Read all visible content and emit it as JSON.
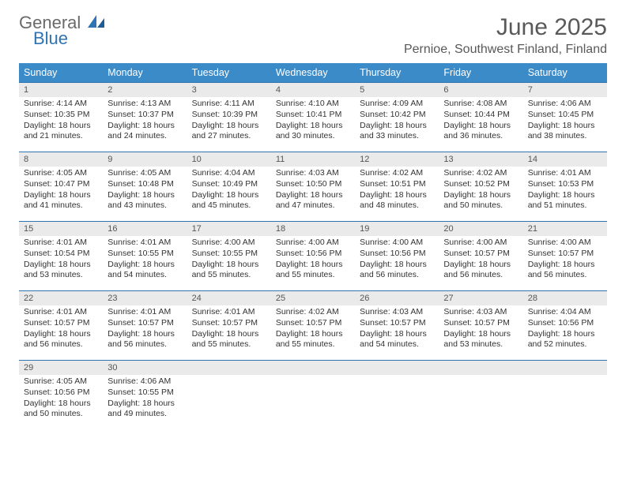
{
  "logo": {
    "word1": "General",
    "word2": "Blue"
  },
  "header": {
    "month_title": "June 2025",
    "location": "Pernioe, Southwest Finland, Finland"
  },
  "colors": {
    "header_bg": "#3b8bc9",
    "header_text": "#ffffff",
    "divider": "#2e74b5",
    "daynum_bg": "#eaeaea",
    "text": "#333333",
    "title_color": "#595959"
  },
  "weekdays": [
    "Sunday",
    "Monday",
    "Tuesday",
    "Wednesday",
    "Thursday",
    "Friday",
    "Saturday"
  ],
  "days": [
    {
      "n": "1",
      "sunrise": "Sunrise: 4:14 AM",
      "sunset": "Sunset: 10:35 PM",
      "daylight": "Daylight: 18 hours and 21 minutes."
    },
    {
      "n": "2",
      "sunrise": "Sunrise: 4:13 AM",
      "sunset": "Sunset: 10:37 PM",
      "daylight": "Daylight: 18 hours and 24 minutes."
    },
    {
      "n": "3",
      "sunrise": "Sunrise: 4:11 AM",
      "sunset": "Sunset: 10:39 PM",
      "daylight": "Daylight: 18 hours and 27 minutes."
    },
    {
      "n": "4",
      "sunrise": "Sunrise: 4:10 AM",
      "sunset": "Sunset: 10:41 PM",
      "daylight": "Daylight: 18 hours and 30 minutes."
    },
    {
      "n": "5",
      "sunrise": "Sunrise: 4:09 AM",
      "sunset": "Sunset: 10:42 PM",
      "daylight": "Daylight: 18 hours and 33 minutes."
    },
    {
      "n": "6",
      "sunrise": "Sunrise: 4:08 AM",
      "sunset": "Sunset: 10:44 PM",
      "daylight": "Daylight: 18 hours and 36 minutes."
    },
    {
      "n": "7",
      "sunrise": "Sunrise: 4:06 AM",
      "sunset": "Sunset: 10:45 PM",
      "daylight": "Daylight: 18 hours and 38 minutes."
    },
    {
      "n": "8",
      "sunrise": "Sunrise: 4:05 AM",
      "sunset": "Sunset: 10:47 PM",
      "daylight": "Daylight: 18 hours and 41 minutes."
    },
    {
      "n": "9",
      "sunrise": "Sunrise: 4:05 AM",
      "sunset": "Sunset: 10:48 PM",
      "daylight": "Daylight: 18 hours and 43 minutes."
    },
    {
      "n": "10",
      "sunrise": "Sunrise: 4:04 AM",
      "sunset": "Sunset: 10:49 PM",
      "daylight": "Daylight: 18 hours and 45 minutes."
    },
    {
      "n": "11",
      "sunrise": "Sunrise: 4:03 AM",
      "sunset": "Sunset: 10:50 PM",
      "daylight": "Daylight: 18 hours and 47 minutes."
    },
    {
      "n": "12",
      "sunrise": "Sunrise: 4:02 AM",
      "sunset": "Sunset: 10:51 PM",
      "daylight": "Daylight: 18 hours and 48 minutes."
    },
    {
      "n": "13",
      "sunrise": "Sunrise: 4:02 AM",
      "sunset": "Sunset: 10:52 PM",
      "daylight": "Daylight: 18 hours and 50 minutes."
    },
    {
      "n": "14",
      "sunrise": "Sunrise: 4:01 AM",
      "sunset": "Sunset: 10:53 PM",
      "daylight": "Daylight: 18 hours and 51 minutes."
    },
    {
      "n": "15",
      "sunrise": "Sunrise: 4:01 AM",
      "sunset": "Sunset: 10:54 PM",
      "daylight": "Daylight: 18 hours and 53 minutes."
    },
    {
      "n": "16",
      "sunrise": "Sunrise: 4:01 AM",
      "sunset": "Sunset: 10:55 PM",
      "daylight": "Daylight: 18 hours and 54 minutes."
    },
    {
      "n": "17",
      "sunrise": "Sunrise: 4:00 AM",
      "sunset": "Sunset: 10:55 PM",
      "daylight": "Daylight: 18 hours and 55 minutes."
    },
    {
      "n": "18",
      "sunrise": "Sunrise: 4:00 AM",
      "sunset": "Sunset: 10:56 PM",
      "daylight": "Daylight: 18 hours and 55 minutes."
    },
    {
      "n": "19",
      "sunrise": "Sunrise: 4:00 AM",
      "sunset": "Sunset: 10:56 PM",
      "daylight": "Daylight: 18 hours and 56 minutes."
    },
    {
      "n": "20",
      "sunrise": "Sunrise: 4:00 AM",
      "sunset": "Sunset: 10:57 PM",
      "daylight": "Daylight: 18 hours and 56 minutes."
    },
    {
      "n": "21",
      "sunrise": "Sunrise: 4:00 AM",
      "sunset": "Sunset: 10:57 PM",
      "daylight": "Daylight: 18 hours and 56 minutes."
    },
    {
      "n": "22",
      "sunrise": "Sunrise: 4:01 AM",
      "sunset": "Sunset: 10:57 PM",
      "daylight": "Daylight: 18 hours and 56 minutes."
    },
    {
      "n": "23",
      "sunrise": "Sunrise: 4:01 AM",
      "sunset": "Sunset: 10:57 PM",
      "daylight": "Daylight: 18 hours and 56 minutes."
    },
    {
      "n": "24",
      "sunrise": "Sunrise: 4:01 AM",
      "sunset": "Sunset: 10:57 PM",
      "daylight": "Daylight: 18 hours and 55 minutes."
    },
    {
      "n": "25",
      "sunrise": "Sunrise: 4:02 AM",
      "sunset": "Sunset: 10:57 PM",
      "daylight": "Daylight: 18 hours and 55 minutes."
    },
    {
      "n": "26",
      "sunrise": "Sunrise: 4:03 AM",
      "sunset": "Sunset: 10:57 PM",
      "daylight": "Daylight: 18 hours and 54 minutes."
    },
    {
      "n": "27",
      "sunrise": "Sunrise: 4:03 AM",
      "sunset": "Sunset: 10:57 PM",
      "daylight": "Daylight: 18 hours and 53 minutes."
    },
    {
      "n": "28",
      "sunrise": "Sunrise: 4:04 AM",
      "sunset": "Sunset: 10:56 PM",
      "daylight": "Daylight: 18 hours and 52 minutes."
    },
    {
      "n": "29",
      "sunrise": "Sunrise: 4:05 AM",
      "sunset": "Sunset: 10:56 PM",
      "daylight": "Daylight: 18 hours and 50 minutes."
    },
    {
      "n": "30",
      "sunrise": "Sunrise: 4:06 AM",
      "sunset": "Sunset: 10:55 PM",
      "daylight": "Daylight: 18 hours and 49 minutes."
    }
  ]
}
